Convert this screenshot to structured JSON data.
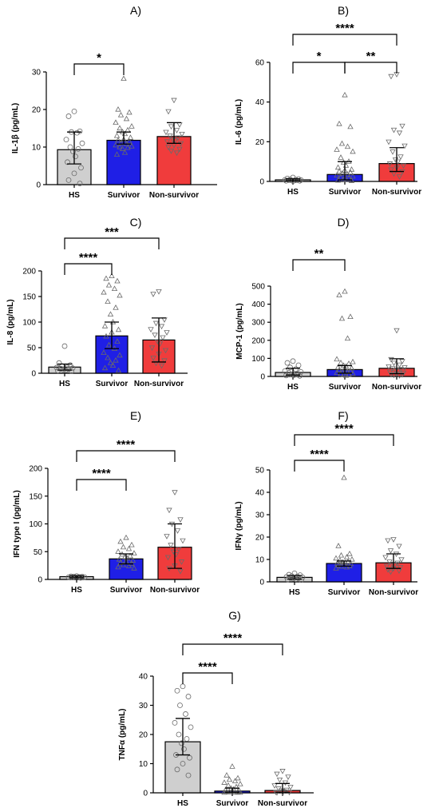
{
  "colors": {
    "HS": "#cfcfcf",
    "Survivor": "#1f1fe6",
    "Non-survivor": "#f03c3c",
    "axis": "#000000"
  },
  "chart_data": [
    {
      "type": "bar",
      "title": "A)",
      "ylabel": "IL-1β  (pg/mL)",
      "categories": [
        "HS",
        "Survivor",
        "Non-survivor"
      ],
      "ylim": [
        0,
        30
      ],
      "yticks": [
        0,
        10,
        20,
        30
      ],
      "series": [
        {
          "values": [
            9.3,
            11.8,
            12.8
          ],
          "error_low": [
            5.5,
            10.8,
            11.0
          ],
          "error_high": [
            14.0,
            14.0,
            16.5
          ]
        }
      ],
      "points": [
        [
          19.5,
          18.2,
          14.2,
          14.0,
          13.8,
          12.0,
          11.0,
          10.0,
          9.5,
          8.8,
          7.5,
          6.0,
          4.5,
          3.0,
          1.2,
          0.3
        ],
        [
          28.2,
          20.0,
          19.2,
          18.5,
          17.5,
          16.5,
          15.5,
          15.0,
          14.5,
          14.0,
          13.5,
          13.0,
          12.5,
          12.0,
          11.8,
          11.5,
          11.0,
          10.8,
          10.5,
          10.2,
          10.0,
          9.8,
          9.5,
          8.5,
          8.0
        ],
        [
          22.5,
          19.5,
          16.0,
          15.5,
          14.5,
          14.0,
          13.5,
          13.0,
          12.5,
          12.0,
          11.8,
          11.5,
          11.0,
          10.5,
          10.0,
          9.5,
          9.0,
          8.5
        ]
      ],
      "significance": [
        {
          "from": 0,
          "to": 1,
          "label": "*"
        }
      ]
    },
    {
      "type": "bar",
      "title": "B)",
      "ylabel": "IL-6 (pg/mL)",
      "categories": [
        "HS",
        "Survivor",
        "Non-survivor"
      ],
      "ylim": [
        0,
        60
      ],
      "yticks": [
        0,
        20,
        40,
        60
      ],
      "series": [
        {
          "values": [
            0.8,
            3.5,
            9.0
          ],
          "error_low": [
            0.3,
            0.8,
            5.0
          ],
          "error_high": [
            1.3,
            10.0,
            17.0
          ]
        }
      ],
      "points": [
        [
          2.0,
          1.5,
          1.2,
          1.0,
          0.9,
          0.8,
          0.7,
          0.6,
          0.5,
          0.5,
          0.4,
          0.3,
          0.3,
          0.2
        ],
        [
          43.5,
          29.0,
          27.5,
          19.0,
          17.5,
          16.0,
          15.0,
          12.0,
          10.0,
          9.5,
          8.0,
          7.0,
          6.0,
          5.5,
          5.0,
          4.5,
          4.0,
          3.5,
          3.0,
          2.5,
          2.0,
          1.5,
          1.0,
          0.8,
          0.5,
          0.3
        ],
        [
          54.0,
          53.0,
          28.0,
          26.0,
          24.5,
          20.0,
          18.0,
          15.0,
          12.5,
          11.0,
          10.0,
          9.0,
          8.0,
          7.0,
          6.0,
          5.0,
          4.0,
          2.5
        ]
      ],
      "significance": [
        {
          "from": 0,
          "to": 1,
          "label": "*"
        },
        {
          "from": 1,
          "to": 2,
          "label": "**"
        },
        {
          "from": 0,
          "to": 2,
          "label": "****"
        }
      ]
    },
    {
      "type": "bar",
      "title": "C)",
      "ylabel": "IL-8 (pg/mL)",
      "categories": [
        "HS",
        "Survivor",
        "Non-survivor"
      ],
      "ylim": [
        0,
        200
      ],
      "yticks": [
        0,
        50,
        100,
        150,
        200
      ],
      "series": [
        {
          "values": [
            12,
            73,
            65
          ],
          "error_low": [
            6,
            48,
            22
          ],
          "error_high": [
            18,
            100,
            108
          ]
        }
      ],
      "points": [
        [
          53,
          20,
          16,
          14,
          12,
          11,
          10,
          9,
          8,
          7,
          6,
          5,
          4
        ],
        [
          190,
          185,
          180,
          172,
          165,
          158,
          152,
          140,
          128,
          115,
          100,
          92,
          85,
          80,
          72,
          62,
          55,
          48,
          40,
          35,
          30,
          25,
          20,
          15,
          10,
          5
        ],
        [
          160,
          155,
          105,
          98,
          92,
          86,
          80,
          75,
          70,
          62,
          58,
          50,
          45,
          38,
          30,
          25,
          20,
          15
        ]
      ],
      "significance": [
        {
          "from": 0,
          "to": 1,
          "label": "****"
        },
        {
          "from": 0,
          "to": 2,
          "label": "***"
        }
      ]
    },
    {
      "type": "bar",
      "title": "D)",
      "ylabel": "MCP-1 (pg/mL)",
      "categories": [
        "HS",
        "Survivor",
        "Non-survivor"
      ],
      "ylim": [
        0,
        500
      ],
      "yticks": [
        0,
        100,
        200,
        300,
        400,
        500
      ],
      "series": [
        {
          "values": [
            22,
            38,
            45
          ],
          "error_low": [
            8,
            18,
            15
          ],
          "error_high": [
            45,
            60,
            98
          ]
        }
      ],
      "points": [
        [
          85,
          75,
          62,
          50,
          40,
          30,
          25,
          20,
          15,
          10,
          8,
          5,
          3
        ],
        [
          470,
          450,
          330,
          320,
          210,
          95,
          80,
          75,
          70,
          60,
          55,
          50,
          45,
          40,
          35,
          30,
          28,
          25,
          20,
          15,
          12,
          10,
          8,
          5
        ],
        [
          255,
          95,
          85,
          75,
          65,
          55,
          50,
          45,
          40,
          35,
          30,
          25,
          20,
          15,
          12,
          10,
          8,
          5
        ]
      ],
      "significance": [
        {
          "from": 0,
          "to": 1,
          "label": "**"
        }
      ]
    },
    {
      "type": "bar",
      "title": "E)",
      "ylabel": "IFN type I (pg/mL)",
      "categories": [
        "HS",
        "Survivor",
        "Non-survivor"
      ],
      "ylim": [
        0,
        200
      ],
      "yticks": [
        0,
        50,
        100,
        150,
        200
      ],
      "series": [
        {
          "values": [
            5,
            37,
            58
          ],
          "error_low": [
            3,
            28,
            20
          ],
          "error_high": [
            7,
            46,
            100
          ]
        }
      ],
      "points": [
        [
          6,
          5.5,
          5,
          5,
          4.5,
          4,
          4,
          3.5,
          3
        ],
        [
          75,
          68,
          62,
          58,
          55,
          50,
          47,
          45,
          42,
          40,
          38,
          36,
          34,
          32,
          30,
          28,
          26,
          24,
          22,
          20
        ],
        [
          157,
          125,
          108,
          100,
          88,
          78,
          70,
          62,
          55,
          50,
          45,
          40,
          32,
          25,
          20,
          15
        ]
      ],
      "significance": [
        {
          "from": 0,
          "to": 1,
          "label": "****"
        },
        {
          "from": 0,
          "to": 2,
          "label": "****"
        }
      ]
    },
    {
      "type": "bar",
      "title": "F)",
      "ylabel": "IFNγ (pg/mL)",
      "categories": [
        "HS",
        "Survivor",
        "Non-survivor"
      ],
      "ylim": [
        0,
        50
      ],
      "yticks": [
        0,
        10,
        20,
        30,
        40,
        50
      ],
      "series": [
        {
          "values": [
            2.0,
            8.2,
            8.5
          ],
          "error_low": [
            1.2,
            7.0,
            6.0
          ],
          "error_high": [
            2.8,
            9.3,
            12.5
          ]
        }
      ],
      "points": [
        [
          3.8,
          3.2,
          3.0,
          2.6,
          2.4,
          2.2,
          2.0,
          1.8,
          1.6,
          1.4,
          1.2,
          1.0,
          0.8
        ],
        [
          46.5,
          16.0,
          12.5,
          11.8,
          11.0,
          10.5,
          10.0,
          9.5,
          9.0,
          8.8,
          8.5,
          8.2,
          8.0,
          7.8,
          7.5,
          7.0,
          6.8,
          6.5,
          6.0
        ],
        [
          19.0,
          18.5,
          16.0,
          14.0,
          12.5,
          11.0,
          10.0,
          9.0,
          8.5,
          8.0,
          7.5,
          7.0,
          6.5,
          6.0,
          5.5,
          5.0,
          4.5
        ]
      ],
      "significance": [
        {
          "from": 0,
          "to": 1,
          "label": "****"
        },
        {
          "from": 0,
          "to": 2,
          "label": "****"
        }
      ]
    },
    {
      "type": "bar",
      "title": "G)",
      "ylabel": "TNFα  (pg/mL)",
      "categories": [
        "HS",
        "Survivor",
        "Non-survivor"
      ],
      "ylim": [
        0,
        40
      ],
      "yticks": [
        0,
        10,
        20,
        30,
        40
      ],
      "series": [
        {
          "values": [
            17.5,
            0.6,
            0.8
          ],
          "error_low": [
            13.0,
            0.2,
            0.2
          ],
          "error_high": [
            25.5,
            1.6,
            3.2
          ]
        }
      ],
      "points": [
        [
          36.5,
          35.0,
          33.0,
          30.0,
          27.0,
          24.0,
          22.5,
          20.0,
          18.5,
          17.0,
          15.0,
          13.0,
          12.0,
          10.0,
          8.0,
          6.0
        ],
        [
          9.0,
          6.0,
          5.0,
          4.5,
          4.0,
          3.5,
          3.0,
          2.5,
          2.0,
          1.5,
          1.2,
          1.0,
          0.8,
          0.6,
          0.4,
          0.3,
          0.2,
          0.1,
          0.1,
          0.1
        ],
        [
          7.5,
          6.5,
          5.5,
          4.5,
          3.5,
          2.5,
          2.0,
          1.5,
          1.0,
          0.8,
          0.5,
          0.3,
          0.2,
          0.1,
          0.1
        ]
      ],
      "significance": [
        {
          "from": 0,
          "to": 1,
          "label": "****"
        },
        {
          "from": 0,
          "to": 2,
          "label": "****"
        }
      ]
    }
  ]
}
